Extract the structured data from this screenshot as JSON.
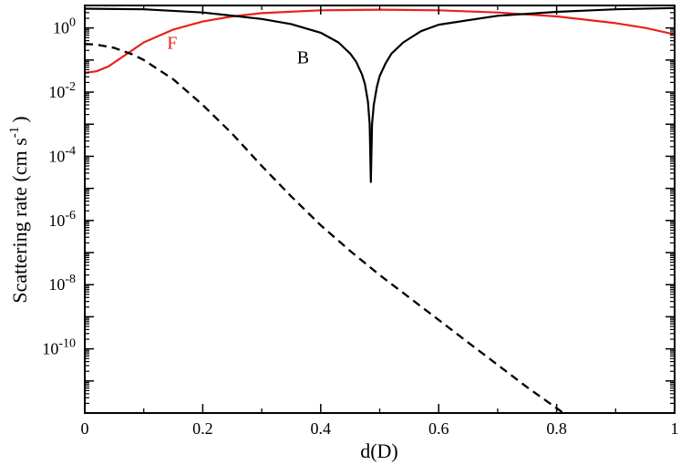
{
  "chart_data": {
    "type": "line",
    "xlabel": "d(D)",
    "ylabel_main": "Scattering rate (cm s",
    "ylabel_sup": "-1",
    "ylabel_close": ")",
    "scale_y": "log",
    "xlim": [
      0,
      1
    ],
    "ylim_log10": [
      -12.0,
      0.7
    ],
    "x_ticks": [
      {
        "value": 0,
        "label": "0"
      },
      {
        "value": 0.2,
        "label": "0.2"
      },
      {
        "value": 0.4,
        "label": "0.4"
      },
      {
        "value": 0.6,
        "label": "0.6"
      },
      {
        "value": 0.8,
        "label": "0.8"
      },
      {
        "value": 1,
        "label": "1"
      }
    ],
    "y_ticks": [
      {
        "log10": 0,
        "base": "10",
        "exp": "0"
      },
      {
        "log10": -2,
        "base": "10",
        "exp": "-2"
      },
      {
        "log10": -4,
        "base": "10",
        "exp": "-4"
      },
      {
        "log10": -6,
        "base": "10",
        "exp": "-6"
      },
      {
        "log10": -8,
        "base": "10",
        "exp": "-8"
      },
      {
        "log10": -10,
        "base": "10",
        "exp": "-10"
      }
    ],
    "grid": false,
    "annotations": [
      {
        "text": "F",
        "x": 0.148,
        "y_log10": -0.65,
        "color": "#e8221b"
      },
      {
        "text": "B",
        "x": 0.37,
        "y_log10": -1.1,
        "color": "#000000"
      }
    ],
    "series": [
      {
        "color": "#e8221b",
        "style": "solid",
        "x": [
          0,
          0.02,
          0.04,
          0.06,
          0.08,
          0.1,
          0.15,
          0.2,
          0.25,
          0.3,
          0.4,
          0.5,
          0.6,
          0.7,
          0.8,
          0.9,
          0.95,
          1
        ],
        "y_log10": [
          -1.4,
          -1.35,
          -1.2,
          -0.95,
          -0.7,
          -0.45,
          -0.05,
          0.2,
          0.36,
          0.46,
          0.55,
          0.57,
          0.55,
          0.48,
          0.36,
          0.15,
          0.0,
          -0.2
        ]
      },
      {
        "color": "#000000",
        "style": "solid",
        "x": [
          0,
          0.1,
          0.2,
          0.3,
          0.35,
          0.4,
          0.43,
          0.45,
          0.46,
          0.47,
          0.475,
          0.48,
          0.483,
          0.485,
          0.487,
          0.49,
          0.495,
          0.5,
          0.51,
          0.52,
          0.54,
          0.57,
          0.6,
          0.7,
          0.8,
          0.9,
          1
        ],
        "y_log10": [
          0.6,
          0.58,
          0.48,
          0.28,
          0.12,
          -0.15,
          -0.45,
          -0.8,
          -1.05,
          -1.45,
          -1.75,
          -2.3,
          -3.0,
          -4.8,
          -3.0,
          -2.4,
          -1.85,
          -1.5,
          -1.1,
          -0.8,
          -0.45,
          -0.1,
          0.1,
          0.38,
          0.5,
          0.58,
          0.62
        ]
      },
      {
        "color": "#8a1a14",
        "style": "dashed",
        "x": [
          0,
          0.02,
          0.05,
          0.08,
          0.1,
          0.15,
          0.2,
          0.25,
          0.3,
          0.35,
          0.4,
          0.45,
          0.5,
          0.55,
          0.6,
          0.65,
          0.7,
          0.75,
          0.8,
          0.85
        ],
        "y_log10": [
          -0.5,
          -0.52,
          -0.62,
          -0.82,
          -1.0,
          -1.6,
          -2.4,
          -3.3,
          -4.3,
          -5.25,
          -6.15,
          -6.95,
          -7.7,
          -8.4,
          -9.1,
          -9.8,
          -10.5,
          -11.2,
          -11.85,
          -12.5
        ]
      },
      {
        "color": "#000000",
        "style": "dashed",
        "x": [
          0,
          0.02,
          0.05,
          0.08,
          0.1,
          0.15,
          0.2,
          0.25,
          0.3,
          0.35,
          0.4,
          0.45,
          0.5,
          0.55,
          0.6,
          0.65,
          0.7,
          0.75,
          0.8,
          0.85
        ],
        "y_log10": [
          -0.5,
          -0.52,
          -0.62,
          -0.82,
          -1.0,
          -1.6,
          -2.4,
          -3.3,
          -4.3,
          -5.25,
          -6.15,
          -6.95,
          -7.7,
          -8.4,
          -9.1,
          -9.8,
          -10.5,
          -11.2,
          -11.85,
          -12.5
        ]
      }
    ]
  }
}
